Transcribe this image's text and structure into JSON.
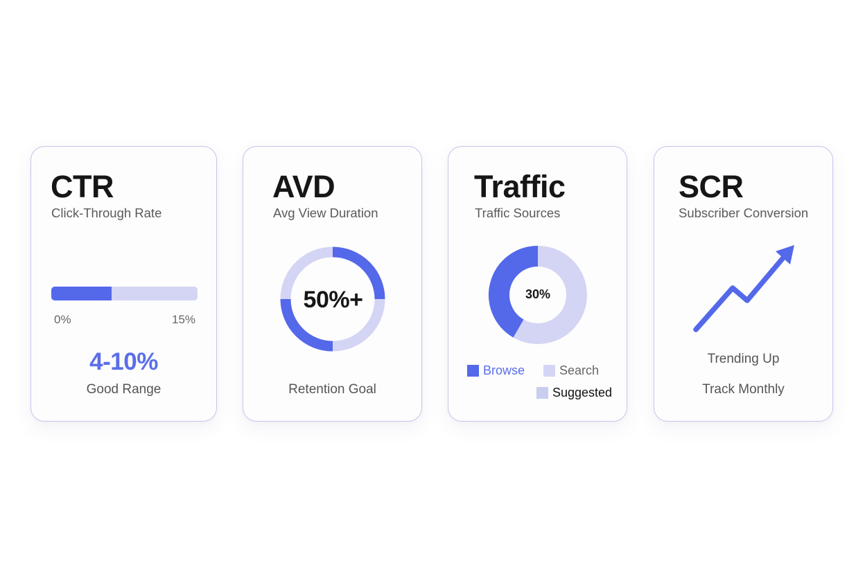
{
  "theme": {
    "accent": "#5468ea",
    "accent_text": "#5b6ee8",
    "accent_light": "#d4d5f4",
    "accent_light_alt": "#c9cdee",
    "card_border": "#c8c3ea",
    "title_color": "#161616",
    "muted_text": "#5a5a5a"
  },
  "cards": [
    {
      "id": "ctr",
      "title": "CTR",
      "subtitle": "Click-Through Rate",
      "progress": {
        "min_label": "0%",
        "max_label": "15%",
        "fill_percent": 41
      },
      "value": "4-10%",
      "caption": "Good Range"
    },
    {
      "id": "avd",
      "title": "AVD",
      "subtitle": "Avg View Duration",
      "ring_value": "50%+",
      "caption": "Retention Goal"
    },
    {
      "id": "traffic",
      "title": "Traffic",
      "subtitle": "Traffic Sources",
      "donut_value": "30%",
      "legend": [
        {
          "label": "Browse",
          "color": "#5468ea",
          "text_color": "#5b6ee8"
        },
        {
          "label": "Search",
          "color": "#d4d5f4",
          "text_color": "#666666"
        },
        {
          "label": "Suggested",
          "color": "#c9cdee",
          "text_color": "#111111"
        }
      ]
    },
    {
      "id": "scr",
      "title": "SCR",
      "subtitle": "Subscriber Conversion",
      "trend_label": "Trending Up",
      "caption": "Track Monthly",
      "icon": "trend-up-arrow-icon"
    }
  ],
  "chart_data": [
    {
      "type": "bar",
      "title": "CTR",
      "subtitle": "Click-Through Rate",
      "orientation": "horizontal-progress",
      "xlim": [
        0,
        15
      ],
      "tick_labels": [
        "0%",
        "15%"
      ],
      "filled_value": 6,
      "annotation": "4-10% Good Range"
    },
    {
      "type": "pie",
      "title": "AVD",
      "subtitle": "Avg View Duration",
      "style": "ring",
      "segments": [
        {
          "label": "quarter-1",
          "value": 25,
          "color": "#5468ea"
        },
        {
          "label": "quarter-2",
          "value": 25,
          "color": "#d4d5f4"
        },
        {
          "label": "quarter-3",
          "value": 25,
          "color": "#5468ea"
        },
        {
          "label": "quarter-4",
          "value": 25,
          "color": "#d4d5f4"
        }
      ],
      "center_label": "50%+",
      "annotation": "Retention Goal"
    },
    {
      "type": "pie",
      "title": "Traffic",
      "subtitle": "Traffic Sources",
      "style": "donut",
      "categories": [
        "Browse",
        "Search",
        "Suggested"
      ],
      "values": [
        42,
        58,
        0
      ],
      "center_label": "30%",
      "legend_position": "bottom"
    },
    {
      "type": "line",
      "title": "SCR",
      "subtitle": "Subscriber Conversion",
      "x": [
        0,
        1,
        2,
        3
      ],
      "values": [
        0,
        62,
        42,
        122
      ],
      "annotation": "Trending Up",
      "note": "Track Monthly"
    }
  ]
}
